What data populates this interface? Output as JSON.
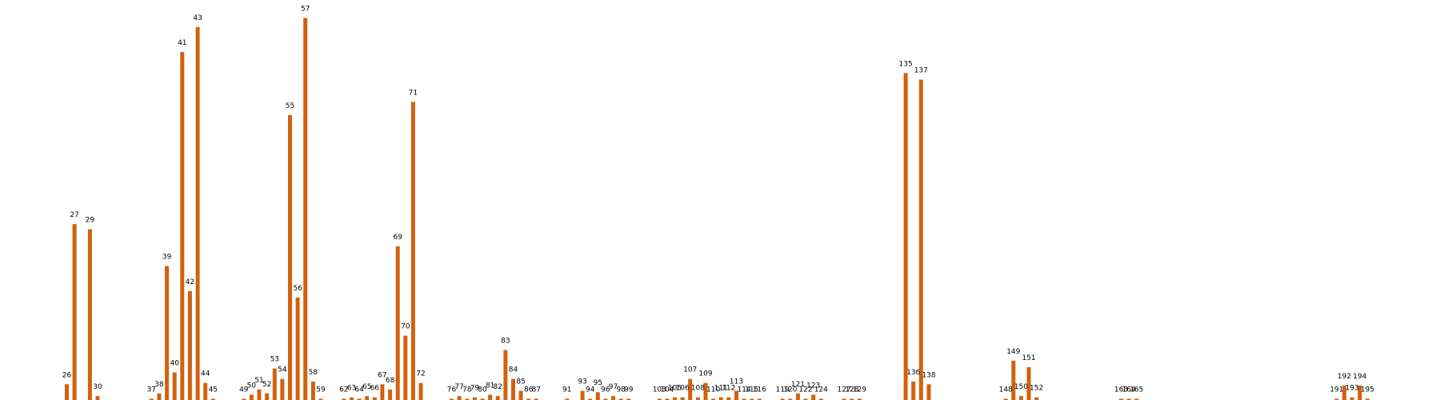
{
  "chart_data": {
    "type": "bar",
    "color": "#d4600e",
    "ylim": [
      0,
      290
    ],
    "grid": false,
    "legend": "none",
    "categories": [
      26,
      27,
      29,
      30,
      37,
      38,
      39,
      40,
      41,
      42,
      43,
      44,
      45,
      49,
      50,
      51,
      52,
      53,
      54,
      55,
      56,
      57,
      58,
      59,
      62,
      63,
      64,
      65,
      66,
      67,
      68,
      69,
      70,
      71,
      72,
      76,
      77,
      78,
      79,
      80,
      81,
      82,
      83,
      84,
      85,
      86,
      87,
      91,
      93,
      94,
      95,
      96,
      97,
      98,
      99,
      103,
      104,
      105,
      106,
      107,
      108,
      109,
      110,
      111,
      112,
      113,
      114,
      115,
      116,
      119,
      120,
      121,
      122,
      123,
      124,
      127,
      128,
      129,
      135,
      136,
      137,
      138,
      148,
      149,
      150,
      151,
      152,
      163,
      164,
      165,
      191,
      192,
      193,
      194,
      195
    ],
    "values": [
      12,
      134,
      130,
      3,
      1,
      5,
      102,
      21,
      265,
      83,
      284,
      13,
      1,
      1,
      4,
      8,
      5,
      24,
      16,
      217,
      78,
      291,
      14,
      1,
      1,
      2,
      1,
      3,
      2,
      12,
      8,
      117,
      49,
      227,
      13,
      1,
      3,
      1,
      2,
      1,
      4,
      3,
      38,
      16,
      7,
      1,
      1,
      1,
      7,
      1,
      6,
      1,
      3,
      1,
      1,
      1,
      1,
      2,
      2,
      16,
      2,
      13,
      1,
      2,
      2,
      7,
      1,
      1,
      1,
      1,
      1,
      5,
      1,
      4,
      1,
      1,
      1,
      1,
      249,
      14,
      244,
      12,
      1,
      30,
      3,
      25,
      2,
      1,
      1,
      1,
      1,
      11,
      2,
      11,
      1
    ]
  }
}
